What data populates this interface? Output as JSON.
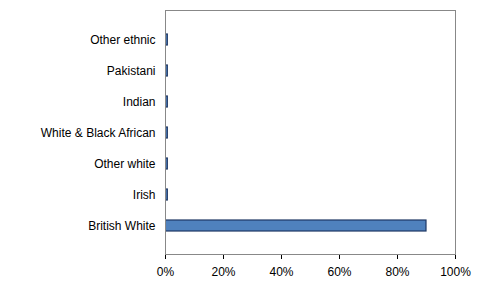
{
  "chart_data": {
    "type": "bar",
    "orientation": "horizontal",
    "categories": [
      "Other ethnic",
      "Pakistani",
      "Indian",
      "White & Black African",
      "Other white",
      "Irish",
      "British White"
    ],
    "values": [
      0.8,
      0.8,
      0.8,
      0.8,
      0.8,
      0.8,
      90
    ],
    "color": "#4f81bd",
    "xlim": [
      0,
      100
    ],
    "xticks": [
      {
        "value": 0,
        "label": "0%"
      },
      {
        "value": 20,
        "label": "20%"
      },
      {
        "value": 40,
        "label": "40%"
      },
      {
        "value": 60,
        "label": "60%"
      },
      {
        "value": 80,
        "label": "80%"
      },
      {
        "value": 100,
        "label": "100%"
      }
    ],
    "grid": false
  }
}
